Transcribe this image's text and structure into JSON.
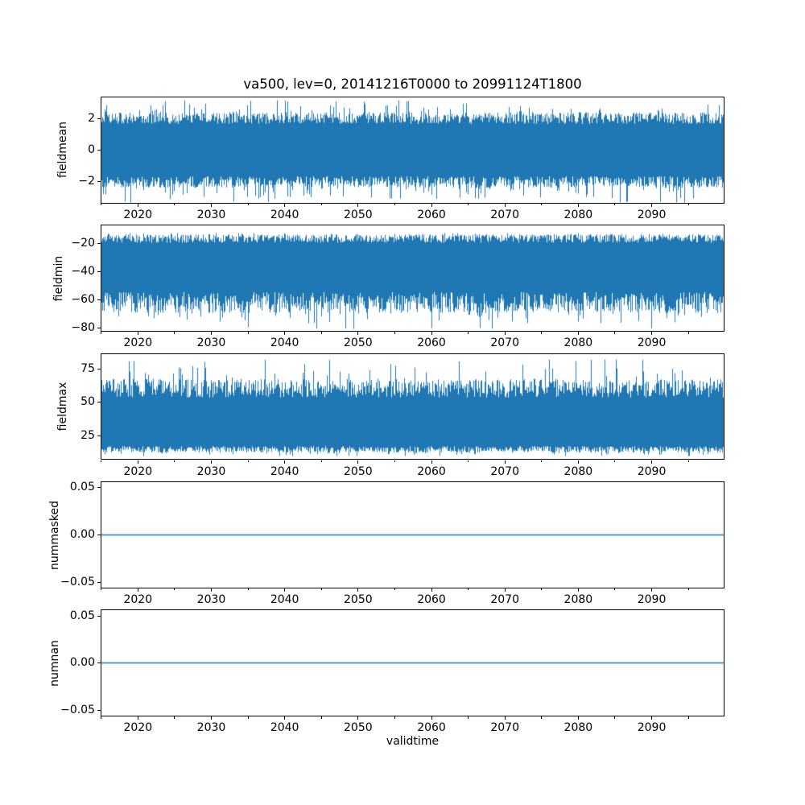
{
  "figure": {
    "title": "va500, lev=0, 20141216T0000 to 20991124T1800",
    "xlabel": "validtime",
    "line_color": "#1f77b4",
    "background": "#ffffff",
    "text_color": "#000000"
  },
  "x_axis": {
    "label": "validtime",
    "xlim": [
      2014.92,
      2099.92
    ],
    "major_ticks": [
      2020,
      2030,
      2040,
      2050,
      2060,
      2070,
      2080,
      2090
    ],
    "major_tick_labels": [
      "2020",
      "2030",
      "2040",
      "2050",
      "2060",
      "2070",
      "2080",
      "2090"
    ],
    "minor_ticks": [
      2015,
      2025,
      2035,
      2045,
      2055,
      2065,
      2075,
      2085,
      2095
    ]
  },
  "chart_data": [
    {
      "type": "line",
      "ylabel": "fieldmean",
      "ylim": [
        -3.43,
        3.43
      ],
      "y_ticks": [
        {
          "value": 2,
          "label": "2"
        },
        {
          "value": 0,
          "label": "0"
        },
        {
          "value": -2,
          "label": "−2"
        }
      ],
      "series": {
        "name": "fieldmean",
        "kind": "dense-noise",
        "seed": 101,
        "description": "high-frequency noise centered on 0",
        "top_range": [
          1.7,
          2.45
        ],
        "top_spike_max": 3.25,
        "bot_range": [
          -2.45,
          -1.7
        ],
        "bot_spike_min": -3.45,
        "spike_prob": 0.1
      }
    },
    {
      "type": "line",
      "ylabel": "fieldmin",
      "ylim": [
        -82.9,
        -7.0
      ],
      "y_ticks": [
        {
          "value": -20,
          "label": "−20"
        },
        {
          "value": -40,
          "label": "−40"
        },
        {
          "value": -60,
          "label": "−60"
        },
        {
          "value": -80,
          "label": "−80"
        }
      ],
      "series": {
        "name": "fieldmin",
        "kind": "dense-noise",
        "seed": 202,
        "description": "high-frequency noise between about -14 and -70 with spikes to -82",
        "top_range": [
          -19.5,
          -13.3
        ],
        "top_spike_max": -12.5,
        "bot_range": [
          -70.0,
          -55.0
        ],
        "bot_spike_min": -81.5,
        "spike_prob": 0.08
      }
    },
    {
      "type": "line",
      "ylabel": "fieldmax",
      "ylim": [
        7.4,
        86.5
      ],
      "y_ticks": [
        {
          "value": 75,
          "label": "75"
        },
        {
          "value": 50,
          "label": "50"
        },
        {
          "value": 25,
          "label": "25"
        }
      ],
      "series": {
        "name": "fieldmax",
        "kind": "dense-noise",
        "seed": 303,
        "description": "high-frequency noise between about 14 and 68 with spikes to 82",
        "top_range": [
          54.0,
          68.0
        ],
        "top_spike_max": 82.5,
        "bot_range": [
          12.8,
          17.5
        ],
        "bot_spike_min": 10.0,
        "spike_prob": 0.08
      }
    },
    {
      "type": "line",
      "ylabel": "nummasked",
      "ylim": [
        -0.0567,
        0.0567
      ],
      "y_ticks": [
        {
          "value": 0.05,
          "label": "0.05"
        },
        {
          "value": 0,
          "label": "0.00"
        },
        {
          "value": -0.05,
          "label": "−0.05"
        }
      ],
      "series": {
        "name": "nummasked",
        "kind": "constant",
        "value": 0
      }
    },
    {
      "type": "line",
      "ylabel": "numnan",
      "ylim": [
        -0.0567,
        0.0567
      ],
      "y_ticks": [
        {
          "value": 0.05,
          "label": "0.05"
        },
        {
          "value": 0,
          "label": "0.00"
        },
        {
          "value": -0.05,
          "label": "−0.05"
        }
      ],
      "series": {
        "name": "numnan",
        "kind": "constant",
        "value": 0
      }
    }
  ]
}
